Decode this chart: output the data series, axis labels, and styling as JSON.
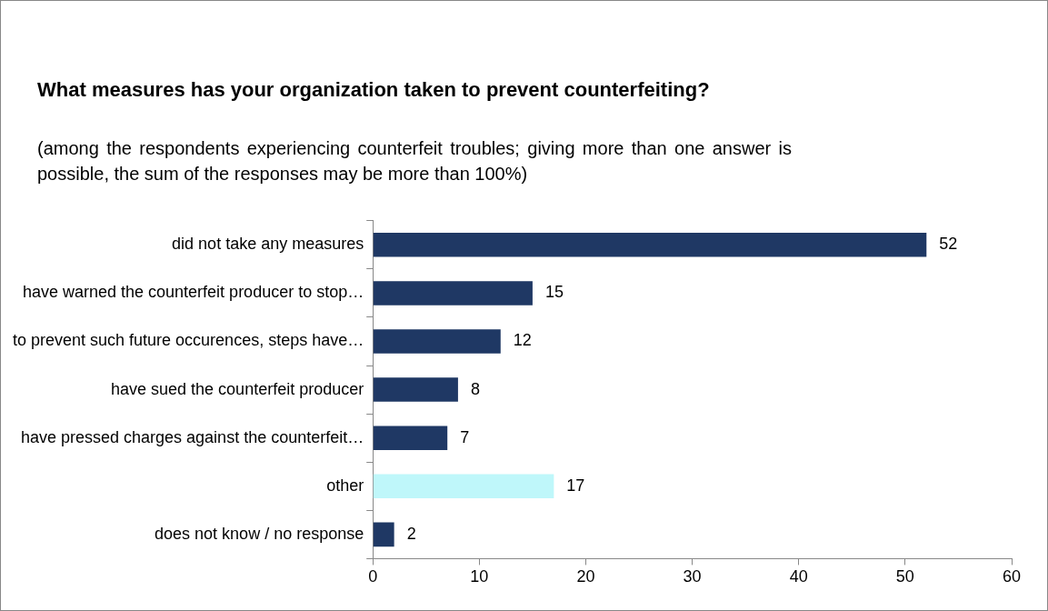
{
  "chart_data": {
    "type": "bar",
    "orientation": "horizontal",
    "title": "What measures has your organization taken to prevent counterfeiting?",
    "subtitle": "(among the respondents experiencing counterfeit troubles; giving more than one answer is possible, the sum of the responses may be more than 100%)",
    "categories": [
      "did not take any measures",
      "have warned the counterfeit producer to stop…",
      "to prevent such future occurences, steps have…",
      "have sued the counterfeit producer",
      "have pressed charges against the counterfeit…",
      "other",
      "does not know / no response"
    ],
    "values": [
      52,
      15,
      12,
      8,
      7,
      17,
      2
    ],
    "colors": [
      "#1f3864",
      "#1f3864",
      "#1f3864",
      "#1f3864",
      "#1f3864",
      "#bff7fa",
      "#1f3864"
    ],
    "xlim": [
      0,
      60
    ],
    "xticks": [
      0,
      10,
      20,
      30,
      40,
      50,
      60
    ],
    "grid": false,
    "legend": false,
    "data_labels": true
  }
}
